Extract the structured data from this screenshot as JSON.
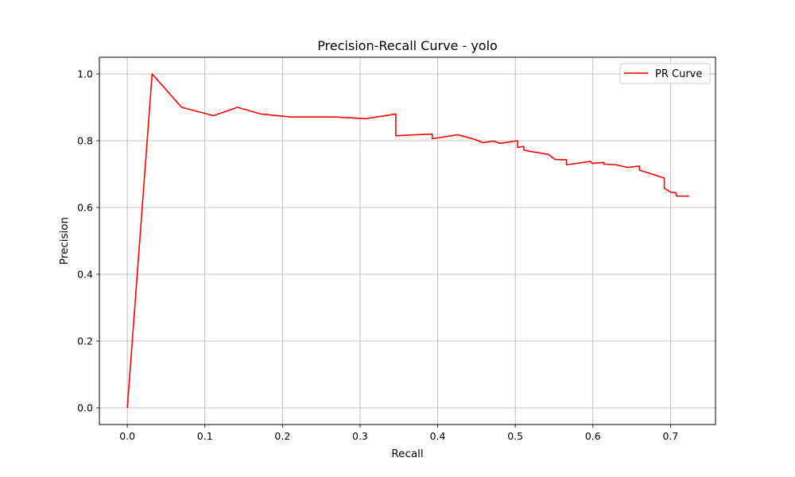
{
  "chart_data": {
    "type": "line",
    "title": "Precision-Recall Curve - yolo",
    "xlabel": "Recall",
    "ylabel": "Precision",
    "xlim": [
      -0.036,
      0.758
    ],
    "ylim": [
      -0.05,
      1.05
    ],
    "xticks": [
      0.0,
      0.1,
      0.2,
      0.3,
      0.4,
      0.5,
      0.6,
      0.7
    ],
    "xtick_labels": [
      "0.0",
      "0.1",
      "0.2",
      "0.3",
      "0.4",
      "0.5",
      "0.6",
      "0.7"
    ],
    "yticks": [
      0.0,
      0.2,
      0.4,
      0.6,
      0.8,
      1.0
    ],
    "ytick_labels": [
      "0.0",
      "0.2",
      "0.4",
      "0.6",
      "0.8",
      "1.0"
    ],
    "grid": true,
    "legend": "upper-right",
    "series": [
      {
        "name": "PR Curve",
        "color": "#ff0000",
        "x": [
          0.0,
          0.032,
          0.07,
          0.111,
          0.142,
          0.172,
          0.211,
          0.269,
          0.307,
          0.346,
          0.346,
          0.393,
          0.393,
          0.426,
          0.449,
          0.458,
          0.472,
          0.48,
          0.503,
          0.503,
          0.511,
          0.511,
          0.519,
          0.543,
          0.551,
          0.566,
          0.566,
          0.597,
          0.599,
          0.614,
          0.614,
          0.629,
          0.645,
          0.66,
          0.66,
          0.692,
          0.692,
          0.7,
          0.707,
          0.708,
          0.724
        ],
        "y": [
          0.0,
          1.0,
          0.9,
          0.875,
          0.9,
          0.88,
          0.871,
          0.871,
          0.866,
          0.88,
          0.815,
          0.82,
          0.806,
          0.818,
          0.803,
          0.794,
          0.799,
          0.792,
          0.8,
          0.78,
          0.783,
          0.772,
          0.768,
          0.759,
          0.744,
          0.743,
          0.728,
          0.738,
          0.732,
          0.735,
          0.73,
          0.728,
          0.72,
          0.724,
          0.712,
          0.688,
          0.658,
          0.646,
          0.644,
          0.634,
          0.634
        ]
      }
    ]
  }
}
